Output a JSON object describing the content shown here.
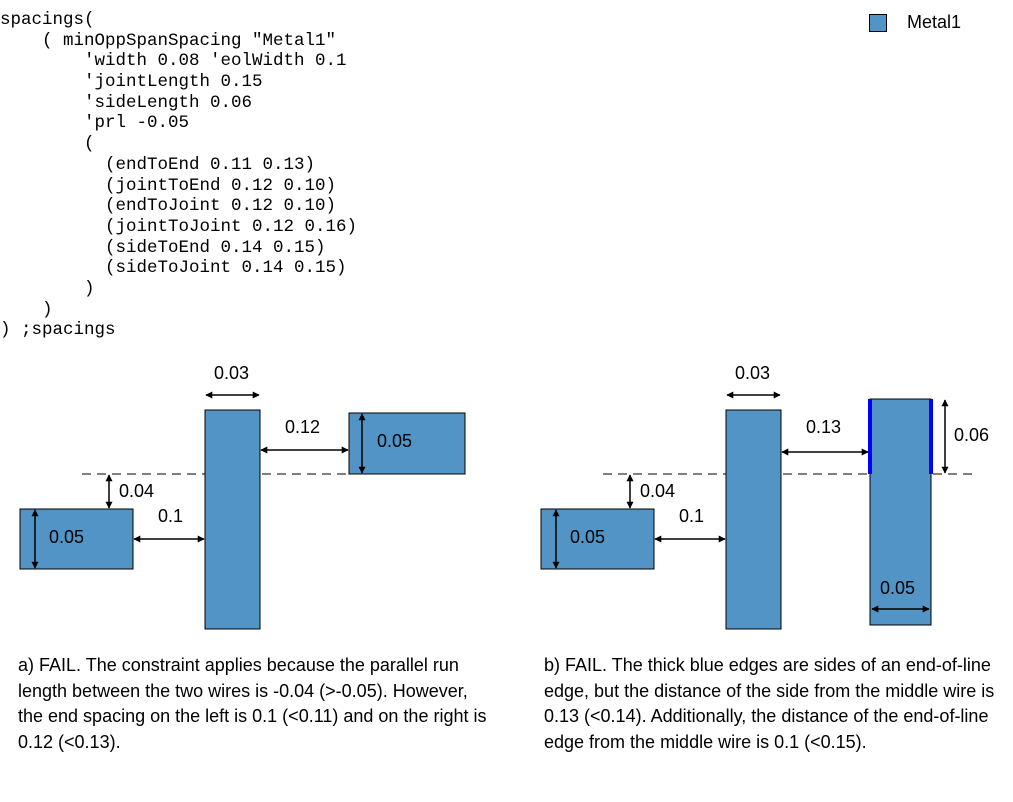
{
  "code_lines": [
    "spacings(",
    "    ( minOppSpanSpacing \"Metal1\"",
    "        'width 0.08 'eolWidth 0.1",
    "        'jointLength 0.15",
    "        'sideLength 0.06",
    "        'prl -0.05",
    "        (",
    "          (endToEnd 0.11 0.13)",
    "          (jointToEnd 0.12 0.10)",
    "          (endToJoint 0.12 0.10)",
    "          (jointToJoint 0.12 0.16)",
    "          (sideToEnd 0.14 0.15)",
    "          (sideToJoint 0.14 0.15)",
    "        )",
    "    )",
    ") ;spacings"
  ],
  "legend": {
    "label": "Metal1",
    "color": "#5294c6"
  },
  "colors": {
    "metal": "#5294c6",
    "highlight_edge": "#0000ff",
    "outline": "#000000"
  },
  "diagram_a": {
    "label_left_wire": "0.05",
    "label_right_wire": "0.05",
    "label_middle_width": "0.03",
    "label_left_spacing": "0.1",
    "label_right_spacing": "0.12",
    "label_prl": "0.04"
  },
  "diagram_b": {
    "label_left_wire": "0.05",
    "label_middle_width": "0.03",
    "label_left_spacing": "0.1",
    "label_right_spacing": "0.13",
    "label_prl": "0.04",
    "label_side_length": "0.06",
    "label_right_width": "0.05"
  },
  "captions": {
    "a": "a) FAIL. The constraint applies because the parallel run length between the two wires is -0.04 (>-0.05). However, the end spacing on the left is 0.1 (<0.11) and on the right is 0.12 (<0.13).",
    "b": "b) FAIL. The thick blue edges are sides of an end-of-line edge, but the distance of the side from the middle wire is 0.13 (<0.14). Additionally, the distance of the end-of-line edge from the middle wire is 0.1 (<0.15)."
  }
}
